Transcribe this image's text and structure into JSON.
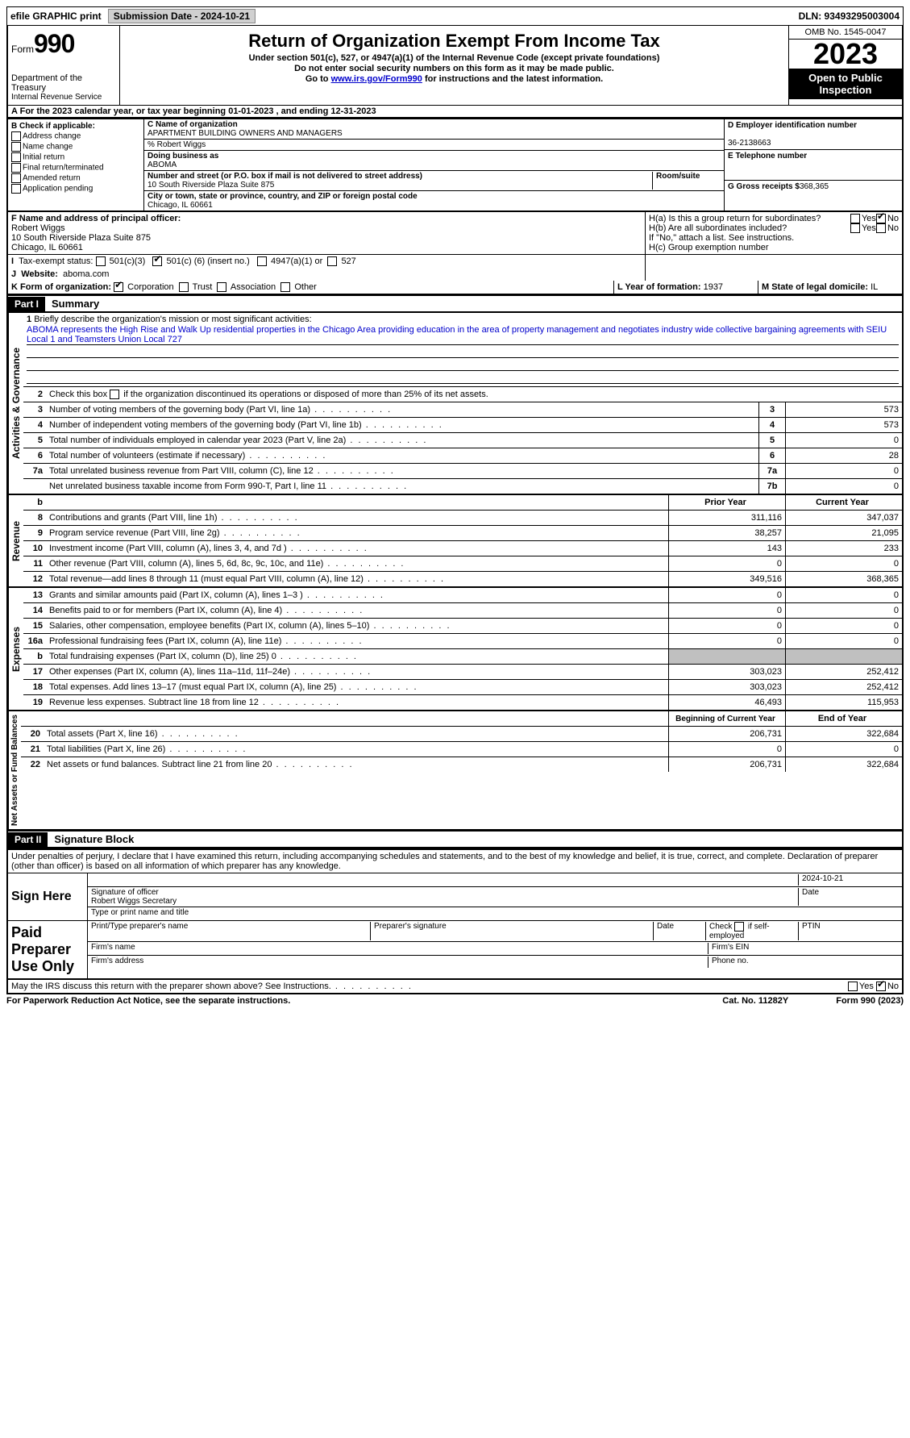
{
  "topbar": {
    "efile": "efile GRAPHIC print",
    "submission": "Submission Date - 2024-10-21",
    "dln": "DLN: 93493295003004"
  },
  "header": {
    "form": "Form",
    "num": "990",
    "dept": "Department of the Treasury",
    "irs": "Internal Revenue Service",
    "title": "Return of Organization Exempt From Income Tax",
    "sub1": "Under section 501(c), 527, or 4947(a)(1) of the Internal Revenue Code (except private foundations)",
    "sub2": "Do not enter social security numbers on this form as it may be made public.",
    "sub3_pre": "Go to ",
    "sub3_link": "www.irs.gov/Form990",
    "sub3_post": " for instructions and the latest information.",
    "omb": "OMB No. 1545-0047",
    "year": "2023",
    "open": "Open to Public Inspection"
  },
  "lineA": "For the 2023 calendar year, or tax year beginning 01-01-2023    , and ending 12-31-2023",
  "colB": {
    "header": "B Check if applicable:",
    "items": [
      "Address change",
      "Name change",
      "Initial return",
      "Final return/terminated",
      "Amended return",
      "Application pending"
    ]
  },
  "colC": {
    "name_lbl": "C Name of organization",
    "name": "APARTMENT BUILDING OWNERS AND MANAGERS",
    "care": "% Robert Wiggs",
    "dba_lbl": "Doing business as",
    "dba": "ABOMA",
    "addr_lbl": "Number and street (or P.O. box if mail is not delivered to street address)",
    "room_lbl": "Room/suite",
    "addr": "10 South Riverside Plaza Suite 875",
    "city_lbl": "City or town, state or province, country, and ZIP or foreign postal code",
    "city": "Chicago, IL  60661"
  },
  "colD": {
    "ein_lbl": "D Employer identification number",
    "ein": "36-2138663",
    "tel_lbl": "E Telephone number",
    "tel": "",
    "gross_lbl": "G Gross receipts $",
    "gross": "368,365"
  },
  "rowF": {
    "lbl": "F  Name and address of principal officer:",
    "name": "Robert Wiggs",
    "addr1": "10 South Riverside Plaza Suite 875",
    "addr2": "Chicago, IL  60661"
  },
  "rowH": {
    "a": "H(a)  Is this a group return for subordinates?",
    "b": "H(b)  Are all subordinates included?",
    "b_note": "If \"No,\" attach a list. See instructions.",
    "c": "H(c)  Group exemption number"
  },
  "rowI": {
    "lbl": "Tax-exempt status:",
    "opt1": "501(c)(3)",
    "opt2_pre": "501(c) (",
    "opt2_val": "6",
    "opt2_post": ") (insert no.)",
    "opt3": "4947(a)(1) or",
    "opt4": "527"
  },
  "rowJ": {
    "lbl": "Website:",
    "val": "aboma.com"
  },
  "rowK": {
    "lbl": "K Form of organization:",
    "opts": [
      "Corporation",
      "Trust",
      "Association",
      "Other"
    ]
  },
  "rowL": {
    "lbl": "L Year of formation:",
    "val": "1937"
  },
  "rowM": {
    "lbl": "M State of legal domicile:",
    "val": "IL"
  },
  "part1": {
    "label": "Part I",
    "title": "Summary"
  },
  "part2": {
    "label": "Part II",
    "title": "Signature Block"
  },
  "vtabs": {
    "gov": "Activities & Governance",
    "rev": "Revenue",
    "exp": "Expenses",
    "net": "Net Assets or Fund Balances"
  },
  "q1": {
    "lbl": "Briefly describe the organization's mission or most significant activities:",
    "text": "ABOMA represents the High Rise and Walk Up residential properties in the Chicago Area providing education in the area of property management and negotiates industry wide collective bargaining agreements with SEIU Local 1 and Teamsters Union Local 727"
  },
  "q2": "Check this box      if the organization discontinued its operations or disposed of more than 25% of its net assets.",
  "lines_gov": [
    {
      "n": "3",
      "d": "Number of voting members of the governing body (Part VI, line 1a)",
      "box": "3",
      "v": "573"
    },
    {
      "n": "4",
      "d": "Number of independent voting members of the governing body (Part VI, line 1b)",
      "box": "4",
      "v": "573"
    },
    {
      "n": "5",
      "d": "Total number of individuals employed in calendar year 2023 (Part V, line 2a)",
      "box": "5",
      "v": "0"
    },
    {
      "n": "6",
      "d": "Total number of volunteers (estimate if necessary)",
      "box": "6",
      "v": "28"
    },
    {
      "n": "7a",
      "d": "Total unrelated business revenue from Part VIII, column (C), line 12",
      "box": "7a",
      "v": "0"
    },
    {
      "n": "",
      "d": "Net unrelated business taxable income from Form 990-T, Part I, line 11",
      "box": "7b",
      "v": "0"
    }
  ],
  "col_headers": {
    "b": "b",
    "py": "Prior Year",
    "cy": "Current Year",
    "boy": "Beginning of Current Year",
    "eoy": "End of Year"
  },
  "lines_rev": [
    {
      "n": "8",
      "d": "Contributions and grants (Part VIII, line 1h)",
      "py": "311,116",
      "cy": "347,037"
    },
    {
      "n": "9",
      "d": "Program service revenue (Part VIII, line 2g)",
      "py": "38,257",
      "cy": "21,095"
    },
    {
      "n": "10",
      "d": "Investment income (Part VIII, column (A), lines 3, 4, and 7d )",
      "py": "143",
      "cy": "233"
    },
    {
      "n": "11",
      "d": "Other revenue (Part VIII, column (A), lines 5, 6d, 8c, 9c, 10c, and 11e)",
      "py": "0",
      "cy": "0"
    },
    {
      "n": "12",
      "d": "Total revenue—add lines 8 through 11 (must equal Part VIII, column (A), line 12)",
      "py": "349,516",
      "cy": "368,365"
    }
  ],
  "lines_exp": [
    {
      "n": "13",
      "d": "Grants and similar amounts paid (Part IX, column (A), lines 1–3 )",
      "py": "0",
      "cy": "0"
    },
    {
      "n": "14",
      "d": "Benefits paid to or for members (Part IX, column (A), line 4)",
      "py": "0",
      "cy": "0"
    },
    {
      "n": "15",
      "d": "Salaries, other compensation, employee benefits (Part IX, column (A), lines 5–10)",
      "py": "0",
      "cy": "0"
    },
    {
      "n": "16a",
      "d": "Professional fundraising fees (Part IX, column (A), line 11e)",
      "py": "0",
      "cy": "0"
    },
    {
      "n": "b",
      "d": "Total fundraising expenses (Part IX, column (D), line 25) 0",
      "py": "GRAY",
      "cy": "GRAY"
    },
    {
      "n": "17",
      "d": "Other expenses (Part IX, column (A), lines 11a–11d, 11f–24e)",
      "py": "303,023",
      "cy": "252,412"
    },
    {
      "n": "18",
      "d": "Total expenses. Add lines 13–17 (must equal Part IX, column (A), line 25)",
      "py": "303,023",
      "cy": "252,412"
    },
    {
      "n": "19",
      "d": "Revenue less expenses. Subtract line 18 from line 12",
      "py": "46,493",
      "cy": "115,953"
    }
  ],
  "lines_net": [
    {
      "n": "20",
      "d": "Total assets (Part X, line 16)",
      "py": "206,731",
      "cy": "322,684"
    },
    {
      "n": "21",
      "d": "Total liabilities (Part X, line 26)",
      "py": "0",
      "cy": "0"
    },
    {
      "n": "22",
      "d": "Net assets or fund balances. Subtract line 21 from line 20",
      "py": "206,731",
      "cy": "322,684"
    }
  ],
  "sig": {
    "intro": "Under penalties of perjury, I declare that I have examined this return, including accompanying schedules and statements, and to the best of my knowledge and belief, it is true, correct, and complete. Declaration of preparer (other than officer) is based on all information of which preparer has any knowledge.",
    "sign_here": "Sign Here",
    "sig_officer": "Signature of officer",
    "date": "Date",
    "sig_date": "2024-10-21",
    "officer_name": "Robert Wiggs  Secretary",
    "type_name": "Type or print name and title",
    "paid": "Paid Preparer Use Only",
    "prep_name": "Print/Type preparer's name",
    "prep_sig": "Preparer's signature",
    "prep_date": "Date",
    "check_self": "Check        if self-employed",
    "ptin": "PTIN",
    "firm_name": "Firm's name",
    "firm_ein": "Firm's EIN",
    "firm_addr": "Firm's address",
    "phone": "Phone no."
  },
  "discuss": "May the IRS discuss this return with the preparer shown above? See Instructions.",
  "footer": {
    "left": "For Paperwork Reduction Act Notice, see the separate instructions.",
    "mid": "Cat. No. 11282Y",
    "right": "Form 990 (2023)"
  },
  "yesno": {
    "yes": "Yes",
    "no": "No"
  }
}
